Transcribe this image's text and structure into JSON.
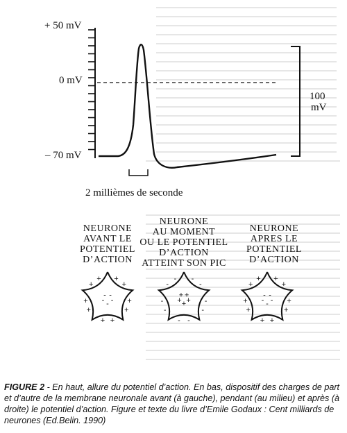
{
  "figure": {
    "y_labels": {
      "top": "+ 50 mV",
      "zero": "0 mV",
      "bottom": "– 70 mV"
    },
    "amplitude_label": {
      "line1": "100",
      "line2": "mV"
    },
    "time_scale_label": "2 millièmes de seconde",
    "neurons": [
      {
        "title": "NEURONE\nAVANT LE\nPOTENTIEL\nD’ACTION"
      },
      {
        "title": "NEURONE\nAU MOMENT\nOU LE POTENTIEL\nD’ACTION\nATTEINT SON PIC"
      },
      {
        "title": "NEURONE\nAPRES LE\nPOTENTIEL\nD’ACTION"
      }
    ]
  },
  "caption": {
    "label": "FIGURE 2",
    "text": " - En haut, allure du potentiel d’action. En bas, dispositif des charges de part et d’autre de la membrane neuronale avant (à gauche), pendant (au milieu) et après (à droite) le potentiel d’action. Figure et texte du livre d’Emile Godaux : Cent milliards de neurones (Ed.Belin. 1990)"
  }
}
